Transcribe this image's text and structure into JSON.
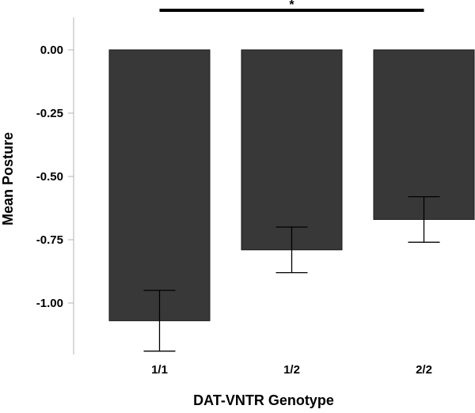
{
  "chart_data": {
    "type": "bar",
    "categories": [
      "1/1",
      "1/2",
      "2/2"
    ],
    "values": [
      -1.07,
      -0.79,
      -0.67
    ],
    "error_bars": [
      {
        "lower": -1.19,
        "upper": -0.95
      },
      {
        "lower": -0.88,
        "upper": -0.7
      },
      {
        "lower": -0.76,
        "upper": -0.58
      }
    ],
    "title": "",
    "xlabel": "DAT-VNTR Genotype",
    "ylabel": "Mean Posture",
    "ylim": [
      -1.2,
      0.13
    ],
    "yticks": [
      0.0,
      -0.25,
      -0.5,
      -0.75,
      -1.0
    ],
    "ytick_labels": [
      "0.00",
      "-0.25",
      "-0.50",
      "-0.75",
      "-1.00"
    ],
    "grid": false,
    "bar_color": "#383838",
    "error_bar_color": "#000000",
    "significance": {
      "from_category": "1/1",
      "to_category": "2/2",
      "label": "*"
    }
  }
}
